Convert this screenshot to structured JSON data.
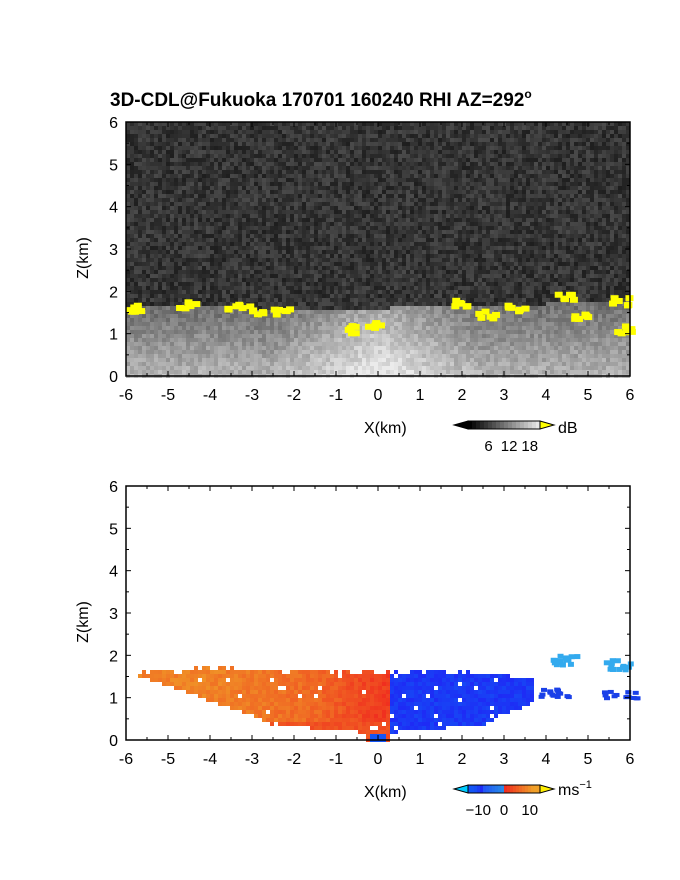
{
  "chart_data": [
    {
      "type": "heatmap",
      "panel": "top",
      "title_main": "3D-CDL@Fukuoka 170701 160240 RHI AZ=292",
      "title_sup": "o",
      "xlabel": "X(km)",
      "ylabel": "Z(km)",
      "xlim": [
        -6,
        6
      ],
      "ylim": [
        0,
        6
      ],
      "xticks": [
        "-6",
        "-5",
        "-4",
        "-3",
        "-2",
        "-1",
        "0",
        "1",
        "2",
        "3",
        "4",
        "5",
        "6"
      ],
      "yticks": [
        "0",
        "1",
        "2",
        "3",
        "4",
        "5",
        "6"
      ],
      "colorbar": {
        "unit": "dB",
        "ticks": [
          "6",
          "12",
          "18"
        ],
        "tick_values": [
          6,
          12,
          18
        ],
        "range": [
          0,
          21
        ],
        "high_color": "#ffff00"
      },
      "features": {
        "background_noise": "dark gray speckle",
        "aerosol_layer_top_km": [
          [
            -6,
            1.6
          ],
          [
            -4,
            1.65
          ],
          [
            -2,
            1.55
          ],
          [
            0,
            1.6
          ],
          [
            2,
            1.65
          ],
          [
            4,
            1.7
          ],
          [
            6,
            1.8
          ]
        ],
        "bright_patches": [
          {
            "x": -5.8,
            "z": 1.6
          },
          {
            "x": -4.5,
            "z": 1.65
          },
          {
            "x": -3.4,
            "z": 1.6
          },
          {
            "x": -2.9,
            "z": 1.55
          },
          {
            "x": -2.3,
            "z": 1.5
          },
          {
            "x": -0.6,
            "z": 1.1
          },
          {
            "x": -0.1,
            "z": 1.2
          },
          {
            "x": 2.0,
            "z": 1.7
          },
          {
            "x": 2.6,
            "z": 1.45
          },
          {
            "x": 3.3,
            "z": 1.6
          },
          {
            "x": 4.5,
            "z": 1.85
          },
          {
            "x": 4.9,
            "z": 1.4
          },
          {
            "x": 5.8,
            "z": 1.75
          },
          {
            "x": 5.9,
            "z": 1.1
          }
        ]
      }
    },
    {
      "type": "heatmap",
      "panel": "bottom",
      "xlabel": "X(km)",
      "ylabel": "Z(km)",
      "xlim": [
        -6,
        6
      ],
      "ylim": [
        0,
        6
      ],
      "xticks": [
        "-6",
        "-5",
        "-4",
        "-3",
        "-2",
        "-1",
        "0",
        "1",
        "2",
        "3",
        "4",
        "5",
        "6"
      ],
      "yticks": [
        "0",
        "1",
        "2",
        "3",
        "4",
        "5",
        "6"
      ],
      "colorbar": {
        "unit": "ms",
        "unit_sup": "−1",
        "ticks": [
          "−10",
          "0",
          "10"
        ],
        "tick_values": [
          -10,
          0,
          10
        ],
        "range": [
          -14,
          14
        ]
      },
      "features": {
        "velocity_sign_boundary_x_km": 0.3,
        "negative_side": "x > 0.3, blue (toward -10)",
        "positive_side": "x < 0.3, orange/red (toward +10)",
        "layer_top_km": [
          [
            -6,
            1.6
          ],
          [
            -4,
            1.7
          ],
          [
            -2,
            1.65
          ],
          [
            0,
            1.6
          ],
          [
            2,
            1.6
          ],
          [
            3,
            1.55
          ],
          [
            3.5,
            1.45
          ]
        ],
        "upper_patches": [
          {
            "x": 4.5,
            "z": 1.85
          },
          {
            "x": 5.8,
            "z": 1.75
          }
        ],
        "lower_patches": [
          {
            "x": 4.2,
            "z": 1.1
          },
          {
            "x": 5.8,
            "z": 1.05
          }
        ]
      }
    }
  ]
}
